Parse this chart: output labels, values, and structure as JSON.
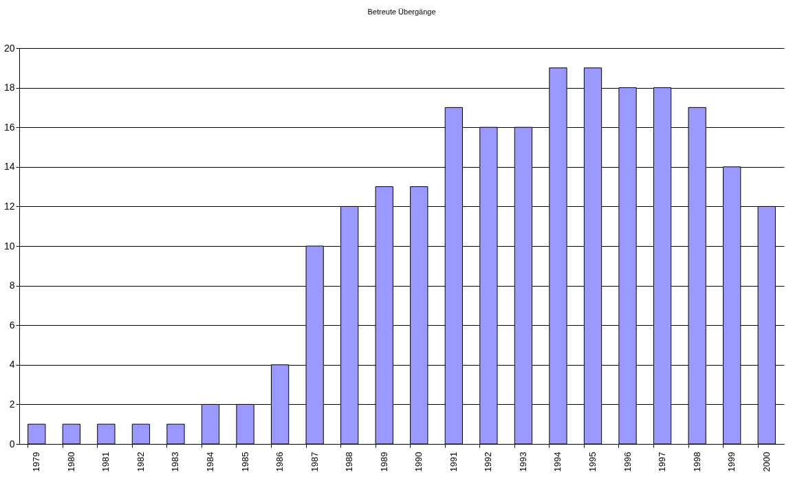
{
  "chart_data": {
    "type": "bar",
    "title": "Betreute Übergänge",
    "categories": [
      "1979",
      "1980",
      "1981",
      "1982",
      "1983",
      "1984",
      "1985",
      "1986",
      "1987",
      "1988",
      "1989",
      "1990",
      "1991",
      "1992",
      "1993",
      "1994",
      "1995",
      "1996",
      "1997",
      "1998",
      "1999",
      "2000"
    ],
    "values": [
      1,
      1,
      1,
      1,
      1,
      2,
      2,
      4,
      10,
      12,
      13,
      13,
      17,
      16,
      16,
      19,
      19,
      18,
      18,
      17,
      14,
      12
    ],
    "color": "#9999ff",
    "ylim": [
      0,
      20
    ],
    "yticks": [
      0,
      2,
      4,
      6,
      8,
      10,
      12,
      14,
      16,
      18,
      20
    ],
    "grid": "y"
  }
}
